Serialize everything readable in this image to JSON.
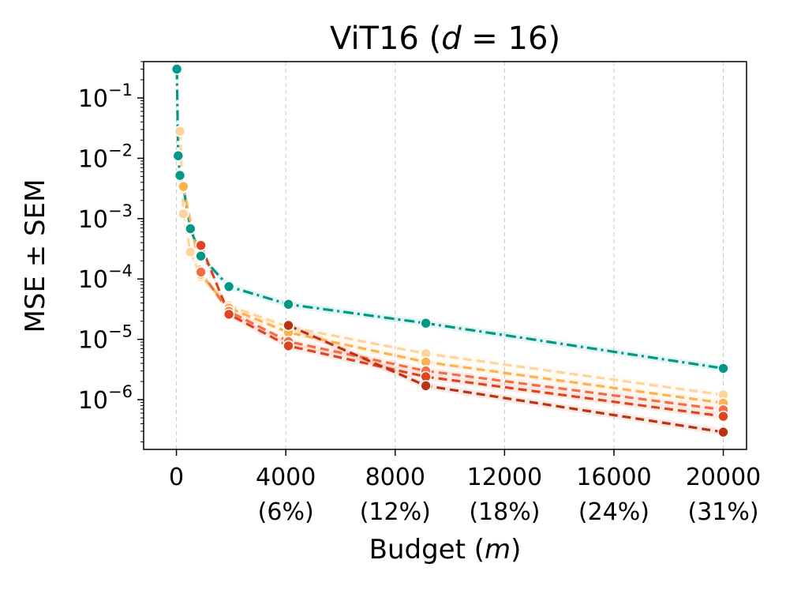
{
  "chart_data": {
    "type": "line",
    "title": {
      "base": "ViT16 (",
      "var": "d",
      "rest": " = 16)"
    },
    "xlabel": {
      "base": "Budget (",
      "var": "m",
      "rest": ")"
    },
    "ylabel": "MSE ± SEM",
    "xlim": [
      -1200,
      20850
    ],
    "ylim": [
      1.5e-07,
      0.4
    ],
    "yscale": "log",
    "grid": "x",
    "x_ticks": [
      {
        "value": 0,
        "label": "0",
        "sub": ""
      },
      {
        "value": 4000,
        "label": "4000",
        "sub": "(6%)"
      },
      {
        "value": 8000,
        "label": "8000",
        "sub": "(12%)"
      },
      {
        "value": 12000,
        "label": "12000",
        "sub": "(18%)"
      },
      {
        "value": 16000,
        "label": "16000",
        "sub": "(24%)"
      },
      {
        "value": 20000,
        "label": "20000",
        "sub": "(31%)"
      }
    ],
    "y_ticks": [
      {
        "value": 1e-06,
        "base": "10",
        "exp": "−6"
      },
      {
        "value": 1e-05,
        "base": "10",
        "exp": "−5"
      },
      {
        "value": 0.0001,
        "base": "10",
        "exp": "−4"
      },
      {
        "value": 0.001,
        "base": "10",
        "exp": "−3"
      },
      {
        "value": 0.01,
        "base": "10",
        "exp": "−2"
      },
      {
        "value": 0.1,
        "base": "10",
        "exp": "−1"
      }
    ],
    "series": [
      {
        "color": "#009988",
        "style": "dashdot",
        "x": [
          16,
          64,
          128,
          256,
          512,
          896,
          1920,
          4096,
          9120,
          20000
        ],
        "y": [
          0.3,
          0.011,
          0.0052,
          0.0033,
          0.00068,
          0.00024,
          7.5e-05,
          3.8e-05,
          1.85e-05,
          3.3e-06
        ]
      },
      {
        "color": "#fdd49e",
        "style": "dashed",
        "x": [
          128,
          256,
          512,
          896,
          1920,
          4096,
          9120,
          20000
        ],
        "y": [
          0.028,
          0.0012,
          0.00028,
          0.00011,
          3.6e-05,
          1.6e-05,
          5.8e-06,
          1.2e-06
        ]
      },
      {
        "color": "#fdb24e",
        "style": "dashed",
        "x": [
          256,
          896,
          1920,
          4096,
          9120,
          20000
        ],
        "y": [
          0.0034,
          0.00012,
          3.3e-05,
          1.3e-05,
          4.2e-06,
          8.8e-07
        ]
      },
      {
        "color": "#f46d43",
        "style": "dashed",
        "x": [
          896,
          1920,
          4096,
          9120,
          20000
        ],
        "y": [
          0.00013,
          2.9e-05,
          9.2e-06,
          3e-06,
          6.8e-07
        ]
      },
      {
        "color": "#e0441f",
        "style": "dashed",
        "x": [
          896,
          1920,
          4096,
          9120,
          20000
        ],
        "y": [
          0.00036,
          2.6e-05,
          7.8e-06,
          2.4e-06,
          5.3e-07
        ]
      },
      {
        "color": "#bb3313",
        "style": "dashed",
        "x": [
          4096,
          9120,
          20000
        ],
        "y": [
          1.7e-05,
          1.7e-06,
          2.9e-07
        ]
      }
    ]
  }
}
